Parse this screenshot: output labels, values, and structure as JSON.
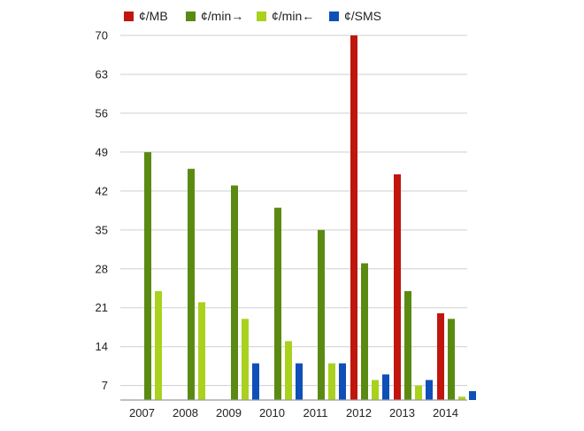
{
  "chart_data": {
    "type": "bar",
    "title": "",
    "xlabel": "",
    "ylabel": "",
    "categories": [
      "2007",
      "2008",
      "2009",
      "2010",
      "2011",
      "2012",
      "2013",
      "2014"
    ],
    "series": [
      {
        "name": "¢/MB",
        "color": "#c0160e",
        "values": [
          null,
          null,
          null,
          null,
          null,
          70,
          45,
          20
        ]
      },
      {
        "name": "¢/min→",
        "color": "#5b8a12",
        "values": [
          49,
          46,
          43,
          39,
          35,
          29,
          24,
          19
        ]
      },
      {
        "name": "¢/min←",
        "color": "#a9d11d",
        "values": [
          24,
          22,
          19,
          15,
          11,
          8,
          7,
          5
        ]
      },
      {
        "name": "¢/SMS",
        "color": "#0f4fb8",
        "values": [
          null,
          null,
          11,
          11,
          11,
          9,
          8,
          6
        ]
      }
    ],
    "yticks": [
      "7",
      "14",
      "21",
      "28",
      "35",
      "42",
      "49",
      "56",
      "63",
      "70"
    ],
    "ylim": [
      4.4,
      70
    ],
    "grid": true,
    "legend_position": "top-left"
  }
}
